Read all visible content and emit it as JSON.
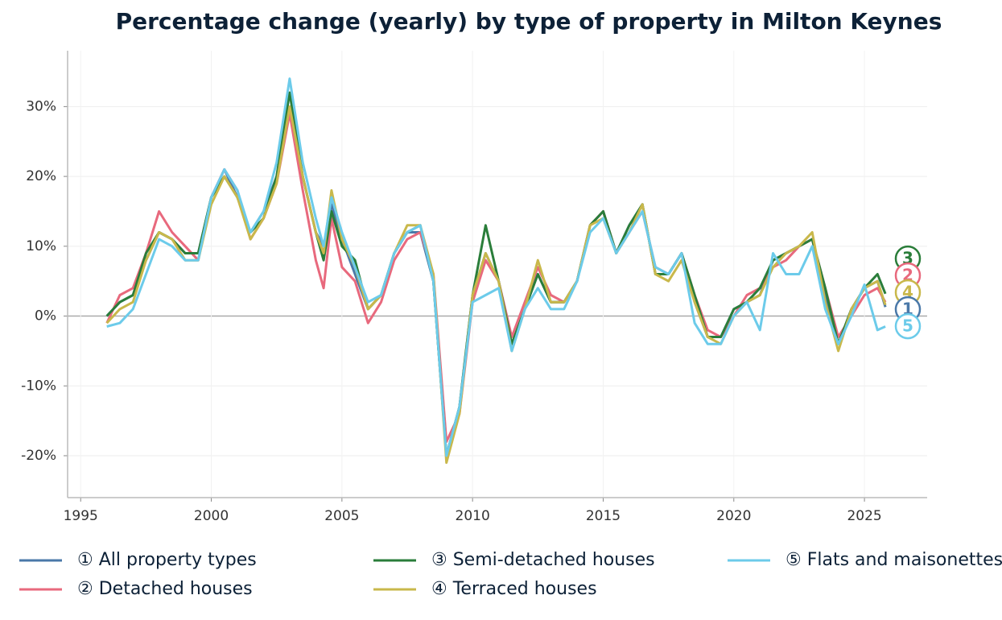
{
  "chart_data": {
    "type": "line",
    "title": "Percentage change (yearly) by type of property in Milton Keynes",
    "x": [
      1996.0,
      1996.5,
      1997.0,
      1997.5,
      1998.0,
      1998.5,
      1999.0,
      1999.5,
      2000.0,
      2000.5,
      2001.0,
      2001.5,
      2002.0,
      2002.5,
      2003.0,
      2003.5,
      2004.0,
      2004.3,
      2004.6,
      2005.0,
      2005.5,
      2006.0,
      2006.5,
      2007.0,
      2007.5,
      2008.0,
      2008.5,
      2009.0,
      2009.5,
      2010.0,
      2010.5,
      2011.0,
      2011.5,
      2012.0,
      2012.5,
      2013.0,
      2013.5,
      2014.0,
      2014.5,
      2015.0,
      2015.5,
      2016.0,
      2016.5,
      2017.0,
      2017.5,
      2018.0,
      2018.5,
      2019.0,
      2019.5,
      2020.0,
      2020.5,
      2021.0,
      2021.5,
      2022.0,
      2022.5,
      2023.0,
      2023.5,
      2024.0,
      2024.5,
      2025.0,
      2025.5,
      2025.8
    ],
    "series": [
      {
        "name": "① All property types",
        "end_label": "1",
        "color": "#4a78a8",
        "values": [
          0,
          2,
          3,
          8,
          12,
          11,
          9,
          9,
          17,
          21,
          17,
          12,
          15,
          20,
          30,
          20,
          12,
          10,
          16,
          11,
          6,
          1,
          3,
          9,
          12,
          12,
          5,
          -20,
          -13,
          3,
          9,
          5,
          -4,
          1,
          6,
          2,
          2,
          5,
          13,
          15,
          9,
          13,
          16,
          6,
          6,
          9,
          2,
          -3,
          -3,
          1,
          2,
          3,
          8,
          9,
          10,
          11,
          3,
          -4,
          1,
          4,
          5,
          1.3
        ]
      },
      {
        "name": "② Detached houses",
        "end_label": "2",
        "color": "#e8697d",
        "values": [
          -1,
          3,
          4,
          9,
          15,
          12,
          10,
          8,
          17,
          21,
          18,
          11,
          14,
          19,
          29,
          18,
          8,
          4,
          14,
          7,
          5,
          -1,
          2,
          8,
          11,
          12,
          6,
          -18,
          -14,
          2,
          8,
          5,
          -3,
          2,
          7,
          3,
          2,
          5,
          13,
          15,
          9,
          12,
          15,
          7,
          6,
          9,
          3,
          -2,
          -3,
          0,
          3,
          4,
          7,
          8,
          10,
          11,
          4,
          -3,
          0,
          3,
          4,
          2.0
        ]
      },
      {
        "name": "③ Semi-detached houses",
        "end_label": "3",
        "color": "#2a7d3a",
        "values": [
          0,
          2,
          3,
          9,
          12,
          11,
          9,
          9,
          17,
          20,
          17,
          12,
          14,
          20,
          32,
          20,
          12,
          8,
          15,
          10,
          8,
          1,
          3,
          9,
          12,
          13,
          5,
          -20,
          -13,
          3,
          13,
          5,
          -4,
          1,
          6,
          2,
          2,
          5,
          13,
          15,
          9,
          13,
          16,
          6,
          6,
          9,
          3,
          -3,
          -3,
          1,
          2,
          4,
          8,
          9,
          10,
          11,
          4,
          -4,
          1,
          4,
          6,
          3.2
        ]
      },
      {
        "name": "④ Terraced houses",
        "end_label": "4",
        "color": "#c9b84b",
        "values": [
          -1,
          1,
          2,
          8,
          12,
          11,
          8,
          8,
          16,
          20,
          17,
          11,
          14,
          19,
          30,
          20,
          12,
          9,
          18,
          11,
          7,
          1,
          3,
          9,
          13,
          13,
          6,
          -21,
          -14,
          3,
          9,
          5,
          -5,
          1,
          8,
          2,
          2,
          5,
          13,
          14,
          9,
          12,
          16,
          6,
          5,
          8,
          2,
          -3,
          -4,
          0,
          2,
          3,
          7,
          9,
          10,
          12,
          2,
          -5,
          1,
          4,
          5,
          1.6
        ]
      },
      {
        "name": "⑤ Flats and maisonettes",
        "end_label": "5",
        "color": "#6ccbea",
        "values": [
          -1.5,
          -1,
          1,
          6,
          11,
          10,
          8,
          8,
          17,
          21,
          18,
          12,
          15,
          22,
          34,
          22,
          14,
          10,
          17,
          12,
          7,
          2,
          3,
          9,
          12,
          13,
          5,
          -20,
          -13,
          2,
          3,
          4,
          -5,
          1,
          4,
          1,
          1,
          5,
          12,
          14,
          9,
          12,
          15,
          7,
          6,
          9,
          -1,
          -4,
          -4,
          0,
          2,
          -2,
          9,
          6,
          6,
          10,
          1,
          -4,
          0,
          4.5,
          -2,
          -1.5
        ]
      }
    ],
    "xlim": [
      1994.5,
      2027.4
    ],
    "ylim": [
      -26,
      38
    ],
    "xticks": [
      1995,
      2000,
      2005,
      2010,
      2015,
      2020,
      2025
    ],
    "yticks": [
      {
        "value": -20,
        "label": "-20%"
      },
      {
        "value": -10,
        "label": "-10%"
      },
      {
        "value": 0,
        "label": "0%"
      },
      {
        "value": 10,
        "label": "10%"
      },
      {
        "value": 20,
        "label": "20%"
      },
      {
        "value": 30,
        "label": "30%"
      }
    ],
    "grid": true
  }
}
